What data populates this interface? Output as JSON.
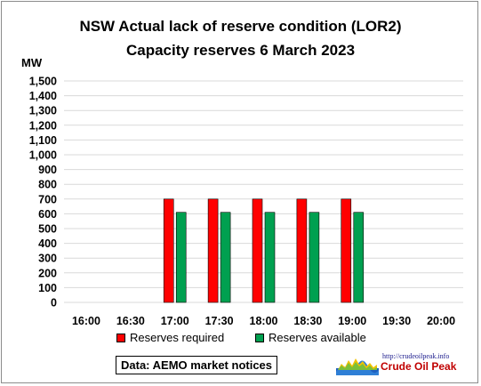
{
  "chart_data": {
    "type": "bar",
    "title": "NSW Actual lack of reserve condition (LOR2)",
    "subtitle": "Capacity reserves 6 March 2023",
    "ylabel": "MW",
    "xlabel": "",
    "ylim": [
      0,
      1500
    ],
    "ytick_step": 100,
    "ytick_labels": [
      "0",
      "100",
      "200",
      "300",
      "400",
      "500",
      "600",
      "700",
      "800",
      "900",
      "1,000",
      "1,100",
      "1,200",
      "1,300",
      "1,400",
      "1,500"
    ],
    "categories": [
      "16:00",
      "16:30",
      "17:00",
      "17:30",
      "18:00",
      "18:30",
      "19:00",
      "19:30",
      "20:00"
    ],
    "series": [
      {
        "name": "Reserves required",
        "color": "#ff0000",
        "values": [
          null,
          null,
          700,
          700,
          700,
          700,
          700,
          null,
          null
        ]
      },
      {
        "name": "Reserves available",
        "color": "#00a050",
        "values": [
          null,
          null,
          610,
          610,
          610,
          610,
          610,
          null,
          null
        ]
      }
    ],
    "grid": true,
    "legend_position": "bottom"
  },
  "source": "Data: AEMO market notices",
  "logo": {
    "url": "http://crudeoilpeak.info",
    "name": "Crude Oil Peak"
  }
}
